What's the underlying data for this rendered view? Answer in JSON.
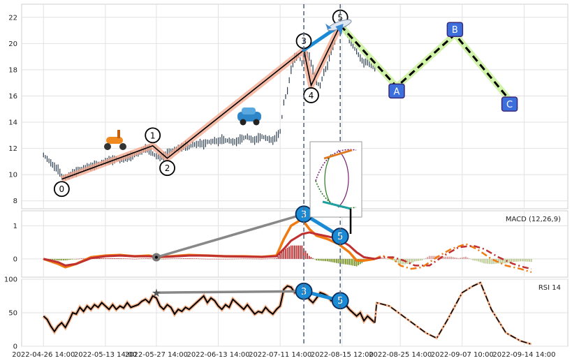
{
  "chart_data": {
    "type": "line",
    "colors": {
      "price_bars": "#2c3e50",
      "wave_line": "#000000",
      "wave_band": "#f2a48a",
      "impulse_fit": "#1a8ad4",
      "correction_band": "#c8f09a",
      "correction_dash": "#000000",
      "correction_box": "#3c6fdc",
      "macd": "#f07a10",
      "signal": "#c03030",
      "hist_pos": "#b02020",
      "hist_neg": "#6a8a10",
      "rsi": "#000000",
      "rsi_glow": "#f2a070",
      "vline": "#5a6a80"
    },
    "x_ticks": [
      "2022-04-26 14:00",
      "2022-05-13 14:00",
      "2022-05-27 14:00",
      "2022-06-13 14:00",
      "2022-07-11 14:00",
      "2022-08-15 12:00",
      "2022-08-25 14:00",
      "2022-09-07 10:00",
      "2022-09-14 14:00"
    ],
    "x_tick_pos": [
      0,
      17,
      31,
      48,
      65,
      82,
      98,
      115,
      132
    ],
    "xlim": [
      -6,
      144
    ],
    "price_panel": {
      "ylim": [
        7.4,
        23.0
      ],
      "y_ticks": [
        8,
        10,
        12,
        14,
        16,
        18,
        20,
        22
      ],
      "price_path": [
        [
          0,
          11.5
        ],
        [
          1,
          11.2
        ],
        [
          2,
          10.9
        ],
        [
          3,
          10.6
        ],
        [
          4,
          10.4
        ],
        [
          5,
          9.9
        ],
        [
          6,
          9.8
        ],
        [
          7,
          9.9
        ],
        [
          8,
          10.1
        ],
        [
          9,
          10.2
        ],
        [
          10,
          10.4
        ],
        [
          11,
          10.5
        ],
        [
          12,
          10.6
        ],
        [
          13,
          10.6
        ],
        [
          14,
          10.7
        ],
        [
          15,
          10.8
        ],
        [
          16,
          10.9
        ],
        [
          17,
          11.0
        ],
        [
          18,
          11.1
        ],
        [
          19,
          11.1
        ],
        [
          20,
          11.2
        ],
        [
          21,
          11.1
        ],
        [
          22,
          11.2
        ],
        [
          23,
          11.3
        ],
        [
          24,
          11.4
        ],
        [
          25,
          11.5
        ],
        [
          26,
          11.6
        ],
        [
          27,
          11.8
        ],
        [
          28,
          12.0
        ],
        [
          29,
          11.9
        ],
        [
          30,
          11.6
        ],
        [
          31,
          11.4
        ],
        [
          32,
          11.3
        ],
        [
          33,
          11.4
        ],
        [
          34,
          11.6
        ],
        [
          35,
          11.8
        ],
        [
          36,
          11.9
        ],
        [
          37,
          12.0
        ],
        [
          38,
          12.1
        ],
        [
          39,
          12.2
        ],
        [
          40,
          12.1
        ],
        [
          41,
          12.3
        ],
        [
          42,
          12.3
        ],
        [
          43,
          12.4
        ],
        [
          44,
          12.3
        ],
        [
          45,
          12.5
        ],
        [
          46,
          12.5
        ],
        [
          47,
          12.6
        ],
        [
          48,
          12.5
        ],
        [
          49,
          12.7
        ],
        [
          50,
          12.6
        ],
        [
          51,
          12.6
        ],
        [
          52,
          12.5
        ],
        [
          53,
          12.5
        ],
        [
          54,
          12.7
        ],
        [
          55,
          12.8
        ],
        [
          56,
          12.9
        ],
        [
          57,
          12.7
        ],
        [
          58,
          12.6
        ],
        [
          59,
          12.8
        ],
        [
          60,
          12.9
        ],
        [
          61,
          12.8
        ],
        [
          62,
          12.7
        ],
        [
          63,
          12.6
        ],
        [
          64,
          12.9
        ],
        [
          65,
          13.3
        ],
        [
          66,
          15.5
        ],
        [
          67,
          16.4
        ],
        [
          68,
          18.0
        ],
        [
          69,
          18.9
        ],
        [
          70,
          19.1
        ],
        [
          71,
          18.5
        ],
        [
          72,
          19.3
        ],
        [
          73,
          19.0
        ],
        [
          74,
          18.0
        ],
        [
          75,
          17.0
        ],
        [
          76,
          16.8
        ],
        [
          77,
          17.8
        ],
        [
          78,
          18.3
        ],
        [
          79,
          19.5
        ],
        [
          80,
          20.1
        ],
        [
          81,
          21.5
        ],
        [
          82,
          21.8
        ],
        [
          83,
          21.0
        ],
        [
          84,
          20.4
        ],
        [
          85,
          19.8
        ],
        [
          86,
          19.4
        ],
        [
          87,
          18.9
        ],
        [
          88,
          18.5
        ],
        [
          89,
          18.7
        ],
        [
          90,
          18.3
        ],
        [
          91,
          18.1
        ]
      ],
      "waves": [
        {
          "label": "0",
          "x": 5,
          "y": 9.65
        },
        {
          "label": "1",
          "x": 30,
          "y": 12.2
        },
        {
          "label": "2",
          "x": 34,
          "y": 11.25
        },
        {
          "label": "3",
          "x": 71.5,
          "y": 19.5
        },
        {
          "label": "4",
          "x": 73.5,
          "y": 16.8
        },
        {
          "label": "5",
          "x": 81.5,
          "y": 21.4
        }
      ],
      "impulse_fit": [
        [
          71.5,
          19.5
        ],
        [
          81.5,
          21.4
        ]
      ],
      "corrections": [
        {
          "label": "A",
          "x": 97,
          "y": 16.7
        },
        {
          "label": "B",
          "x": 113,
          "y": 20.7
        },
        {
          "label": "C",
          "x": 128,
          "y": 15.7
        }
      ],
      "vlines": [
        71.5,
        81.5
      ]
    },
    "macd_panel": {
      "label": "MACD (12,26,9)",
      "ylim": [
        -0.55,
        1.45
      ],
      "y_ticks": [
        0,
        1
      ],
      "macd": [
        [
          0,
          0.0
        ],
        [
          4,
          -0.15
        ],
        [
          6,
          -0.25
        ],
        [
          9,
          -0.15
        ],
        [
          13,
          0.05
        ],
        [
          17,
          0.1
        ],
        [
          21,
          0.12
        ],
        [
          25,
          0.08
        ],
        [
          29,
          0.1
        ],
        [
          31,
          0.05
        ],
        [
          35,
          0.08
        ],
        [
          40,
          0.12
        ],
        [
          45,
          0.1
        ],
        [
          50,
          0.08
        ],
        [
          55,
          0.08
        ],
        [
          60,
          0.06
        ],
        [
          64,
          0.1
        ],
        [
          66,
          0.6
        ],
        [
          68,
          1.0
        ],
        [
          71,
          1.2
        ],
        [
          73,
          0.9
        ],
        [
          75,
          0.7
        ],
        [
          78,
          0.6
        ],
        [
          81,
          0.45
        ],
        [
          84,
          0.2
        ],
        [
          86,
          -0.05
        ],
        [
          88,
          -0.05
        ],
        [
          91,
          0.0
        ]
      ],
      "signal": [
        [
          0,
          0.0
        ],
        [
          4,
          -0.1
        ],
        [
          6,
          -0.2
        ],
        [
          9,
          -0.15
        ],
        [
          13,
          0.02
        ],
        [
          17,
          0.08
        ],
        [
          21,
          0.1
        ],
        [
          25,
          0.08
        ],
        [
          29,
          0.08
        ],
        [
          31,
          0.06
        ],
        [
          35,
          0.07
        ],
        [
          40,
          0.1
        ],
        [
          45,
          0.1
        ],
        [
          50,
          0.08
        ],
        [
          55,
          0.07
        ],
        [
          60,
          0.06
        ],
        [
          64,
          0.08
        ],
        [
          66,
          0.3
        ],
        [
          68,
          0.55
        ],
        [
          71,
          0.75
        ],
        [
          73,
          0.8
        ],
        [
          75,
          0.75
        ],
        [
          78,
          0.68
        ],
        [
          81,
          0.6
        ],
        [
          84,
          0.4
        ],
        [
          86,
          0.2
        ],
        [
          88,
          0.05
        ],
        [
          91,
          0.0
        ]
      ],
      "macd_forecast": [
        [
          91,
          0.0
        ],
        [
          93,
          0.1
        ],
        [
          96,
          0.0
        ],
        [
          98,
          -0.2
        ],
        [
          101,
          -0.3
        ],
        [
          104,
          -0.25
        ],
        [
          108,
          0.05
        ],
        [
          112,
          0.3
        ],
        [
          116,
          0.45
        ],
        [
          119,
          0.3
        ],
        [
          123,
          0.0
        ],
        [
          127,
          -0.2
        ],
        [
          131,
          -0.3
        ],
        [
          134,
          -0.4
        ]
      ],
      "signal_forecast": [
        [
          91,
          0.0
        ],
        [
          93,
          0.05
        ],
        [
          96,
          0.05
        ],
        [
          99,
          -0.05
        ],
        [
          102,
          -0.2
        ],
        [
          106,
          -0.2
        ],
        [
          110,
          0.1
        ],
        [
          114,
          0.35
        ],
        [
          118,
          0.4
        ],
        [
          121,
          0.3
        ],
        [
          125,
          0.05
        ],
        [
          129,
          -0.15
        ],
        [
          132,
          -0.25
        ],
        [
          134,
          -0.3
        ]
      ],
      "markers": [
        {
          "label": "3",
          "x": 71.5,
          "y": 1.35
        },
        {
          "label": "5",
          "x": 81.5,
          "y": 0.68
        }
      ],
      "anchor": {
        "x": 31,
        "y": 0.05
      }
    },
    "rsi_panel": {
      "label": "RSI 14",
      "ylim": [
        0,
        100
      ],
      "y_ticks": [
        0,
        50,
        100
      ],
      "rsi": [
        [
          0,
          45
        ],
        [
          1,
          40
        ],
        [
          2,
          30
        ],
        [
          3,
          22
        ],
        [
          4,
          30
        ],
        [
          5,
          35
        ],
        [
          6,
          28
        ],
        [
          7,
          38
        ],
        [
          8,
          50
        ],
        [
          9,
          48
        ],
        [
          10,
          58
        ],
        [
          11,
          52
        ],
        [
          12,
          60
        ],
        [
          13,
          55
        ],
        [
          14,
          62
        ],
        [
          15,
          58
        ],
        [
          16,
          65
        ],
        [
          17,
          60
        ],
        [
          18,
          55
        ],
        [
          19,
          62
        ],
        [
          20,
          55
        ],
        [
          21,
          60
        ],
        [
          22,
          57
        ],
        [
          23,
          65
        ],
        [
          24,
          58
        ],
        [
          25,
          60
        ],
        [
          26,
          62
        ],
        [
          27,
          67
        ],
        [
          28,
          70
        ],
        [
          29,
          65
        ],
        [
          30,
          75
        ],
        [
          31,
          72
        ],
        [
          32,
          60
        ],
        [
          33,
          55
        ],
        [
          34,
          62
        ],
        [
          35,
          58
        ],
        [
          36,
          48
        ],
        [
          37,
          55
        ],
        [
          38,
          52
        ],
        [
          39,
          58
        ],
        [
          40,
          55
        ],
        [
          41,
          60
        ],
        [
          42,
          65
        ],
        [
          43,
          70
        ],
        [
          44,
          75
        ],
        [
          45,
          65
        ],
        [
          46,
          72
        ],
        [
          47,
          68
        ],
        [
          48,
          60
        ],
        [
          49,
          55
        ],
        [
          50,
          62
        ],
        [
          51,
          58
        ],
        [
          52,
          70
        ],
        [
          53,
          65
        ],
        [
          54,
          60
        ],
        [
          55,
          55
        ],
        [
          56,
          62
        ],
        [
          57,
          55
        ],
        [
          58,
          48
        ],
        [
          59,
          52
        ],
        [
          60,
          50
        ],
        [
          61,
          58
        ],
        [
          62,
          52
        ],
        [
          63,
          48
        ],
        [
          64,
          55
        ],
        [
          65,
          60
        ],
        [
          66,
          85
        ],
        [
          67,
          90
        ],
        [
          68,
          88
        ],
        [
          69,
          80
        ],
        [
          70,
          85
        ],
        [
          71,
          82
        ],
        [
          72,
          78
        ],
        [
          73,
          70
        ],
        [
          74,
          65
        ],
        [
          75,
          72
        ],
        [
          76,
          80
        ],
        [
          77,
          78
        ],
        [
          78,
          75
        ],
        [
          79,
          68
        ],
        [
          80,
          72
        ],
        [
          81,
          74
        ],
        [
          82,
          70
        ],
        [
          83,
          62
        ],
        [
          84,
          55
        ],
        [
          85,
          50
        ],
        [
          86,
          45
        ],
        [
          87,
          50
        ],
        [
          88,
          38
        ],
        [
          89,
          45
        ],
        [
          90,
          40
        ],
        [
          91,
          35
        ]
      ],
      "rsi_forecast": [
        [
          91,
          35
        ],
        [
          91.5,
          65
        ],
        [
          95,
          60
        ],
        [
          100,
          40
        ],
        [
          105,
          20
        ],
        [
          108,
          12
        ],
        [
          111,
          40
        ],
        [
          115,
          80
        ],
        [
          118,
          90
        ],
        [
          120,
          95
        ],
        [
          123,
          55
        ],
        [
          127,
          20
        ],
        [
          131,
          8
        ],
        [
          134,
          3
        ]
      ],
      "markers": [
        {
          "label": "3",
          "x": 71.5,
          "y": 82
        },
        {
          "label": "5",
          "x": 81.5,
          "y": 68
        }
      ],
      "anchor": {
        "x": 31,
        "y": 80
      }
    }
  }
}
